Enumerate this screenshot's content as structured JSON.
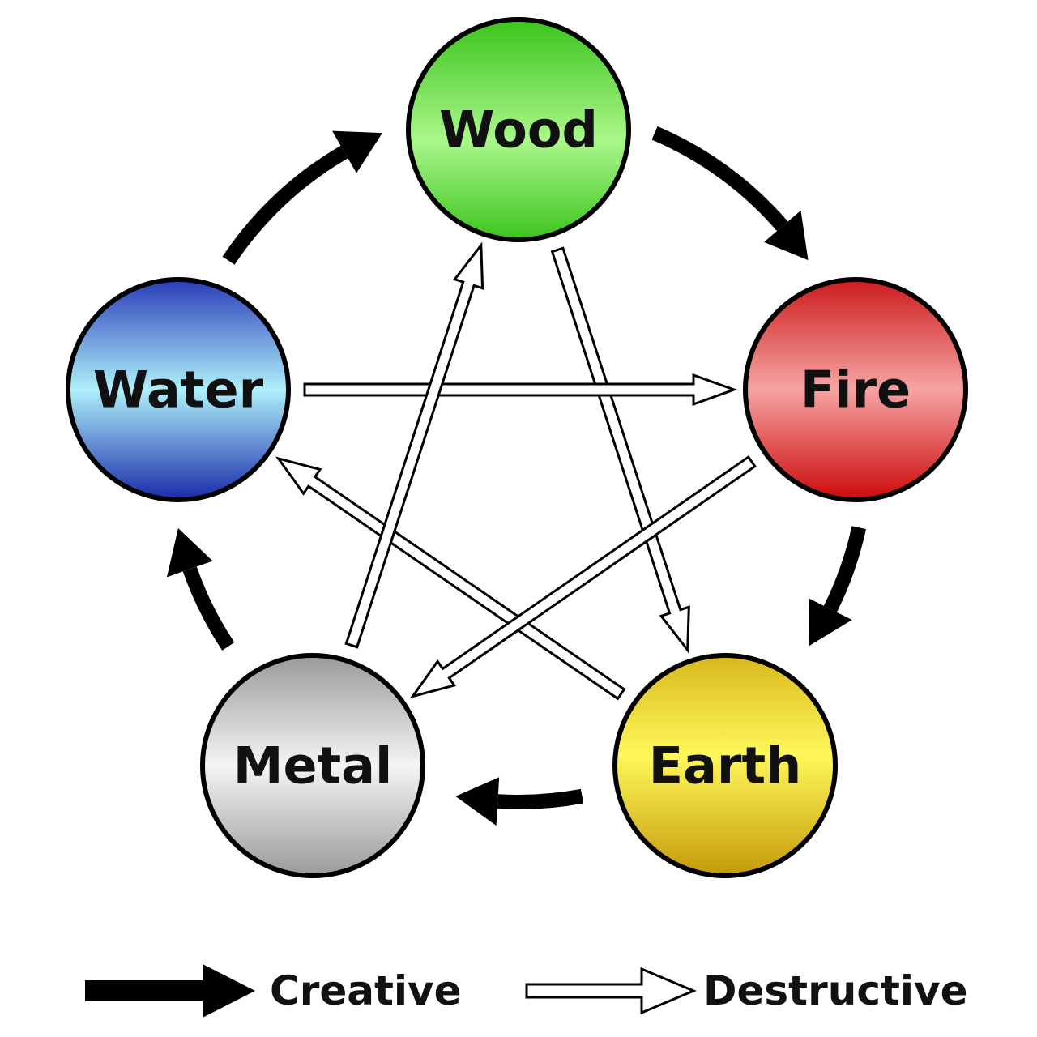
{
  "nodes": [
    {
      "id": "wood",
      "label": "Wood",
      "colors": {
        "top": "#3cc41c",
        "mid": "#aaf78a",
        "bottom": "#3cc41c"
      }
    },
    {
      "id": "fire",
      "label": "Fire",
      "colors": {
        "top": "#cc1c1c",
        "mid": "#f7a3a3",
        "bottom": "#cc0a0a"
      }
    },
    {
      "id": "earth",
      "label": "Earth",
      "colors": {
        "top": "#d8b81c",
        "mid": "#fff85a",
        "bottom": "#c49a0a"
      }
    },
    {
      "id": "metal",
      "label": "Metal",
      "colors": {
        "top": "#9a9a9a",
        "mid": "#f4f4f4",
        "bottom": "#9a9a9a"
      }
    },
    {
      "id": "water",
      "label": "Water",
      "colors": {
        "top": "#2a3cb8",
        "mid": "#aef0fb",
        "bottom": "#1a2aa8"
      }
    }
  ],
  "creative_cycle": [
    {
      "from": "wood",
      "to": "fire"
    },
    {
      "from": "fire",
      "to": "earth"
    },
    {
      "from": "earth",
      "to": "metal"
    },
    {
      "from": "metal",
      "to": "water"
    },
    {
      "from": "water",
      "to": "wood"
    }
  ],
  "destructive_cycle": [
    {
      "from": "wood",
      "to": "earth"
    },
    {
      "from": "earth",
      "to": "water"
    },
    {
      "from": "water",
      "to": "fire"
    },
    {
      "from": "fire",
      "to": "metal"
    },
    {
      "from": "metal",
      "to": "wood"
    }
  ],
  "legend": {
    "creative_label": "Creative",
    "destructive_label": "Destructive"
  },
  "colors": {
    "stroke": "#000000",
    "background": "#ffffff"
  }
}
